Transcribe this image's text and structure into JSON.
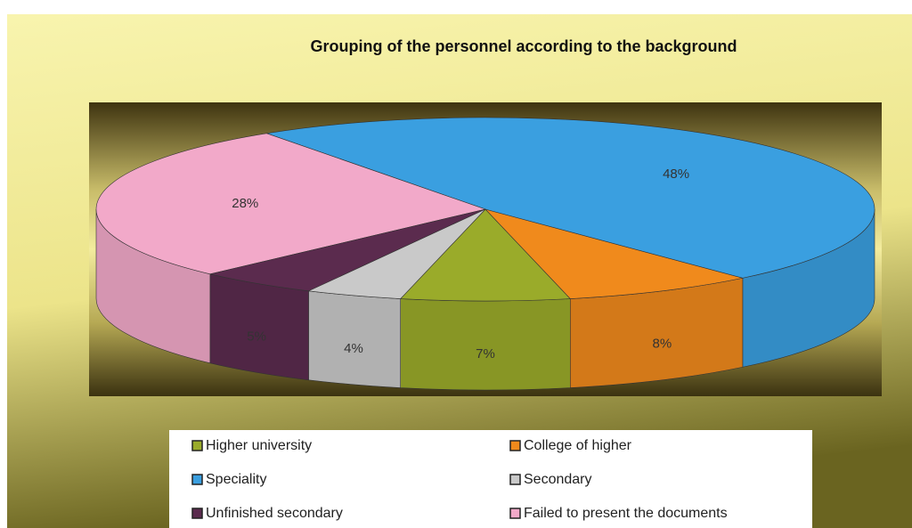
{
  "chart_data": {
    "type": "pie",
    "title": "Grouping of the personnel according to the background",
    "categories": [
      "Higher university",
      "College of higher",
      "Speciality",
      "Secondary",
      "Unfinished secondary",
      "Failed to present the documents"
    ],
    "values": [
      7,
      8,
      48,
      4,
      5,
      28
    ],
    "value_labels": [
      "7%",
      "8%",
      "48%",
      "4%",
      "5%",
      "28%"
    ],
    "colors": [
      "#9aab2a",
      "#f08a1c",
      "#3a9fe0",
      "#c9c9c9",
      "#5b2b4e",
      "#f2a9c9"
    ]
  }
}
